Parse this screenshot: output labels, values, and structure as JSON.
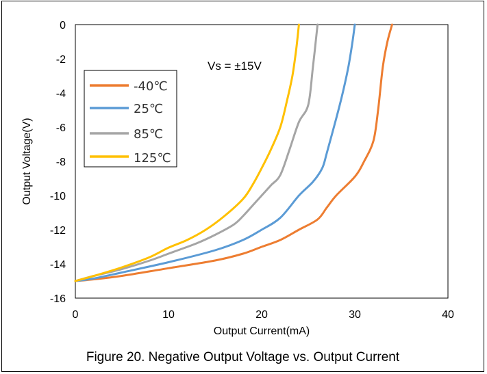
{
  "chart_data": {
    "type": "line",
    "title": "",
    "caption": "Figure 20. Negative Output Voltage vs. Output Current",
    "xlabel": "Output Current(mA)",
    "ylabel": "Output Voltage(V)",
    "xlim": [
      0,
      40
    ],
    "ylim": [
      -16,
      0
    ],
    "xticks": [
      0,
      10,
      20,
      30,
      40
    ],
    "yticks": [
      0,
      -2,
      -4,
      -6,
      -8,
      -10,
      -12,
      -14,
      -16
    ],
    "grid": false,
    "legend_position": "top-left",
    "annotation": "Vs = ±15V",
    "series": [
      {
        "name": "-40℃",
        "color": "#ED7D31",
        "points": [
          [
            0,
            -15
          ],
          [
            2,
            -14.9
          ],
          [
            5,
            -14.7
          ],
          [
            10,
            -14.25
          ],
          [
            15,
            -13.8
          ],
          [
            18,
            -13.4
          ],
          [
            20,
            -13.0
          ],
          [
            22,
            -12.6
          ],
          [
            24,
            -12.0
          ],
          [
            26,
            -11.4
          ],
          [
            27,
            -10.7
          ],
          [
            28,
            -10.0
          ],
          [
            30,
            -8.9
          ],
          [
            31,
            -8.0
          ],
          [
            32,
            -6.8
          ],
          [
            32.5,
            -5.0
          ],
          [
            33,
            -2.5
          ],
          [
            33.5,
            -1.0
          ],
          [
            34,
            0
          ]
        ]
      },
      {
        "name": "25℃",
        "color": "#5B9BD5",
        "points": [
          [
            0,
            -15
          ],
          [
            2,
            -14.85
          ],
          [
            5,
            -14.5
          ],
          [
            10,
            -13.9
          ],
          [
            15,
            -13.2
          ],
          [
            18,
            -12.6
          ],
          [
            20,
            -12.0
          ],
          [
            22,
            -11.3
          ],
          [
            24,
            -10.0
          ],
          [
            25.5,
            -9.2
          ],
          [
            26.5,
            -8.4
          ],
          [
            27,
            -7.5
          ],
          [
            28,
            -5.5
          ],
          [
            28.7,
            -4.0
          ],
          [
            29.3,
            -2.5
          ],
          [
            29.7,
            -1.2
          ],
          [
            30,
            0
          ]
        ]
      },
      {
        "name": "85℃",
        "color": "#A5A5A5",
        "points": [
          [
            0,
            -15
          ],
          [
            2,
            -14.7
          ],
          [
            5,
            -14.3
          ],
          [
            8,
            -13.8
          ],
          [
            10,
            -13.4
          ],
          [
            13,
            -12.8
          ],
          [
            15,
            -12.3
          ],
          [
            17,
            -11.7
          ],
          [
            18,
            -11.2
          ],
          [
            19,
            -10.6
          ],
          [
            20,
            -10.0
          ],
          [
            21,
            -9.4
          ],
          [
            22,
            -8.8
          ],
          [
            23,
            -7.3
          ],
          [
            24,
            -5.7
          ],
          [
            25,
            -4.7
          ],
          [
            25.5,
            -2.5
          ],
          [
            26,
            0
          ]
        ]
      },
      {
        "name": "125℃",
        "color": "#FFC000",
        "points": [
          [
            0,
            -15
          ],
          [
            2,
            -14.7
          ],
          [
            5,
            -14.2
          ],
          [
            8,
            -13.6
          ],
          [
            10,
            -13.05
          ],
          [
            12,
            -12.6
          ],
          [
            14,
            -12.0
          ],
          [
            16,
            -11.2
          ],
          [
            18,
            -10.2
          ],
          [
            19,
            -9.4
          ],
          [
            20,
            -8.4
          ],
          [
            21,
            -7.3
          ],
          [
            22,
            -6.0
          ],
          [
            22.7,
            -4.5
          ],
          [
            23.3,
            -3.0
          ],
          [
            23.7,
            -1.5
          ],
          [
            24,
            0
          ]
        ]
      }
    ]
  }
}
